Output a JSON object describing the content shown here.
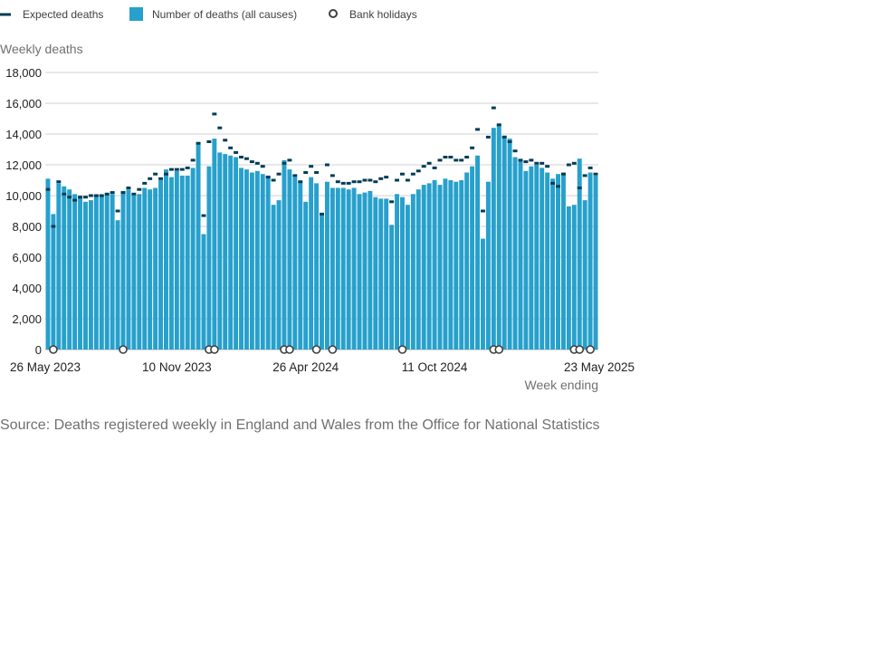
{
  "legend": {
    "expected": "Expected deaths",
    "actual": "Number of deaths (all causes)",
    "holidays": "Bank holidays"
  },
  "source": "Source: Deaths registered weekly in England and Wales from the Office for National Statistics",
  "colors": {
    "bar": "#27a0cc",
    "expected": "#003c57",
    "gridline": "#d0d0d0",
    "holiday_ring": "#414042"
  },
  "chart_data": {
    "type": "bar",
    "ylabel": "Weekly deaths",
    "xlabel": "Week ending",
    "ylim": [
      0,
      18000
    ],
    "yticks": [
      0,
      2000,
      4000,
      6000,
      8000,
      10000,
      12000,
      14000,
      16000,
      18000
    ],
    "ytick_labels": [
      "0",
      "2,000",
      "4,000",
      "6,000",
      "8,000",
      "10,000",
      "12,000",
      "14,000",
      "16,000",
      "18,000"
    ],
    "xtick_labels": [
      {
        "index": 0,
        "label": "26 May 2023"
      },
      {
        "index": 24,
        "label": "10 Nov 2023"
      },
      {
        "index": 48,
        "label": "26 Apr 2024"
      },
      {
        "index": 72,
        "label": "11 Oct 2024"
      },
      {
        "index": 104,
        "label": "23 May 2025"
      }
    ],
    "grid": true,
    "legend_position": "top",
    "series": [
      {
        "name": "Number of deaths (all causes)",
        "kind": "bar",
        "values": [
          11100,
          8800,
          10800,
          10600,
          10400,
          10100,
          9900,
          9600,
          9700,
          10000,
          10000,
          10100,
          10100,
          8400,
          10300,
          10400,
          10000,
          10100,
          10500,
          10400,
          10500,
          11000,
          11700,
          11200,
          11600,
          11300,
          11300,
          11800,
          13400,
          7500,
          11900,
          13700,
          12800,
          12700,
          12600,
          12500,
          11800,
          11700,
          11500,
          11600,
          11400,
          11300,
          9400,
          9700,
          12300,
          11700,
          11200,
          10900,
          9600,
          11200,
          10800,
          8800,
          10900,
          10500,
          10500,
          10500,
          10400,
          10500,
          10100,
          10200,
          10300,
          9900,
          9800,
          9800,
          8100,
          10100,
          9900,
          9400,
          10100,
          10400,
          10700,
          10800,
          11000,
          10700,
          11100,
          11000,
          10900,
          11000,
          11500,
          11900,
          12600,
          7200,
          10900,
          14400,
          14600,
          13900,
          13700,
          12500,
          12300,
          11600,
          11900,
          12000,
          11800,
          11500,
          11100,
          11400,
          11500,
          9300,
          9400,
          12400,
          9700,
          11500,
          11300
        ]
      },
      {
        "name": "Expected deaths",
        "kind": "marker",
        "values": [
          10400,
          8000,
          10900,
          10100,
          9900,
          9700,
          9900,
          9900,
          10000,
          10000,
          10000,
          10100,
          10200,
          9000,
          10200,
          10500,
          10100,
          10400,
          10800,
          11100,
          11400,
          11100,
          11400,
          11700,
          11700,
          11700,
          11800,
          12300,
          13400,
          8700,
          13500,
          15300,
          14400,
          13600,
          13100,
          12800,
          12500,
          12400,
          12200,
          12100,
          11900,
          11200,
          11000,
          11400,
          12100,
          12300,
          11300,
          10900,
          11500,
          11900,
          11500,
          8800,
          12000,
          11300,
          10900,
          10800,
          10800,
          10900,
          10900,
          11000,
          11000,
          10900,
          11100,
          11200,
          9600,
          11000,
          11400,
          11000,
          11400,
          11600,
          11900,
          12100,
          11800,
          12300,
          12500,
          12500,
          12300,
          12300,
          12500,
          13100,
          14300,
          9000,
          13800,
          15700,
          14600,
          13800,
          13500,
          12900,
          12300,
          12200,
          12300,
          12100,
          12100,
          11900,
          10800,
          10600,
          11400,
          12000,
          12100,
          10500,
          11300,
          11800,
          11400
        ]
      },
      {
        "name": "Bank holidays",
        "kind": "holiday",
        "indices": [
          1,
          14,
          30,
          31,
          44,
          45,
          50,
          53,
          66,
          83,
          84,
          98,
          99,
          101
        ]
      }
    ]
  }
}
